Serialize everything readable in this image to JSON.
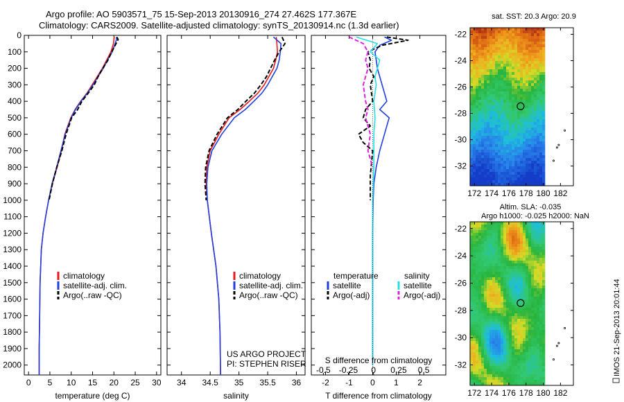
{
  "header": {
    "title_line1": "Argo profile: AO 5903571_75 15-Sep-2013 20130916_274 27.462S 177.367E",
    "title_line2": "Climatology: CARS2009. Satellite-adjusted climatology: synTS_20130914.nc (1.3d earlier)"
  },
  "credits": {
    "project": "US ARGO PROJECT",
    "pi": "PI: STEPHEN RISER",
    "side_text": "IMOS 21-Sep-2013 20:01:44"
  },
  "colors": {
    "climatology": "#e41a1c",
    "satellite": "#1f3ee0",
    "argo": "#000000",
    "salinity_satellite": "#22e0e8",
    "salinity_argo": "#e020e0"
  },
  "chart_data": [
    {
      "type": "line",
      "id": "temperature",
      "xlabel": "temperature (deg C)",
      "ylabel": "",
      "xlim": [
        -1,
        31
      ],
      "ylim": [
        2060,
        0
      ],
      "xticks": [
        0,
        5,
        10,
        15,
        20,
        25,
        30
      ],
      "yticks": [
        0,
        100,
        200,
        300,
        400,
        500,
        600,
        700,
        800,
        900,
        1000,
        1100,
        1200,
        1300,
        1400,
        1500,
        1600,
        1700,
        1800,
        1900,
        2000
      ],
      "legend": [
        "climatology",
        "satellite-adj. clim.",
        "Argo(..raw -QC)"
      ],
      "series": [
        {
          "name": "climatology",
          "style": "solid",
          "color": "#e41a1c",
          "x": [
            20.1,
            20.0,
            19.9,
            19.3,
            18.3,
            17.3,
            16.1,
            14.9,
            13.7,
            12.2,
            10.9,
            9.9,
            8.5,
            7.7,
            6.7,
            5.6,
            4.7,
            4.0,
            3.4,
            3.0,
            2.7,
            2.6,
            2.5,
            2.5
          ],
          "y": [
            10,
            25,
            50,
            100,
            150,
            200,
            250,
            300,
            350,
            400,
            450,
            500,
            600,
            700,
            800,
            900,
            1000,
            1100,
            1200,
            1300,
            1500,
            1700,
            1900,
            2060
          ]
        },
        {
          "name": "satellite-adj. clim.",
          "style": "solid",
          "color": "#1f3ee0",
          "x": [
            20.6,
            20.6,
            20.3,
            19.6,
            18.5,
            17.5,
            16.3,
            15.1,
            13.8,
            12.3,
            11.0,
            10.0,
            8.6,
            7.6,
            6.6,
            5.5,
            4.7,
            4.0,
            3.4,
            3.0,
            2.7,
            2.6,
            2.5,
            2.5
          ],
          "y": [
            10,
            25,
            50,
            100,
            150,
            200,
            250,
            300,
            350,
            400,
            450,
            500,
            600,
            700,
            800,
            900,
            1000,
            1100,
            1200,
            1300,
            1500,
            1700,
            1900,
            2060
          ]
        },
        {
          "name": "Argo(..raw -QC)",
          "style": "dashed",
          "color": "#000000",
          "x": [
            20.7,
            21.0,
            20.5,
            19.5,
            18.6,
            17.4,
            16.3,
            15.4,
            14.0,
            12.5,
            11.5,
            10.1,
            8.8,
            7.8,
            6.6,
            5.6,
            4.8
          ],
          "y": [
            10,
            25,
            50,
            100,
            150,
            200,
            250,
            300,
            350,
            400,
            450,
            500,
            600,
            700,
            800,
            900,
            1000
          ]
        }
      ]
    },
    {
      "type": "line",
      "id": "salinity",
      "xlabel": "salinity",
      "ylabel": "",
      "xlim": [
        33.75,
        36.15
      ],
      "ylim": [
        2060,
        0
      ],
      "xticks": [
        34,
        34.5,
        35,
        35.5,
        36
      ],
      "legend": [
        "climatology",
        "satellite-adj. clim.",
        "Argo(..raw -QC)"
      ],
      "series": [
        {
          "name": "climatology",
          "style": "solid",
          "color": "#e41a1c",
          "x": [
            35.65,
            35.66,
            35.67,
            35.64,
            35.6,
            35.52,
            35.44,
            35.33,
            35.18,
            35.02,
            34.83,
            34.65,
            34.5,
            34.44,
            34.43,
            34.45,
            34.52,
            34.6,
            34.65,
            34.67,
            34.68
          ],
          "y": [
            10,
            50,
            100,
            150,
            200,
            250,
            300,
            350,
            400,
            450,
            500,
            600,
            700,
            800,
            900,
            1000,
            1200,
            1400,
            1600,
            1800,
            2060
          ]
        },
        {
          "name": "satellite-adj. clim.",
          "style": "solid",
          "color": "#1f3ee0",
          "x": [
            35.6,
            35.73,
            35.72,
            35.7,
            35.66,
            35.58,
            35.5,
            35.4,
            35.26,
            35.11,
            34.92,
            34.7,
            34.53,
            34.46,
            34.44,
            34.45,
            34.52,
            34.6,
            34.65,
            34.67,
            34.68
          ],
          "y": [
            10,
            50,
            100,
            150,
            200,
            250,
            300,
            350,
            400,
            450,
            500,
            600,
            700,
            800,
            900,
            1000,
            1200,
            1400,
            1600,
            1800,
            2060
          ]
        },
        {
          "name": "Argo(..raw -QC)",
          "style": "dashed",
          "color": "#000000",
          "x": [
            35.75,
            35.8,
            35.7,
            35.62,
            35.55,
            35.48,
            35.38,
            35.27,
            35.12,
            34.98,
            34.8,
            34.62,
            34.48,
            34.42,
            34.41,
            34.43
          ],
          "y": [
            10,
            50,
            100,
            150,
            200,
            250,
            300,
            350,
            400,
            450,
            500,
            600,
            700,
            800,
            900,
            1000
          ]
        }
      ]
    },
    {
      "type": "line",
      "id": "difference",
      "xlabel": "T difference from climatology",
      "xlabel_top": "S difference from climatology",
      "xlim": [
        -2.6,
        3.1
      ],
      "ylim": [
        2060,
        0
      ],
      "xticks": [
        -2,
        -1,
        0,
        1,
        2
      ],
      "xticklabels": [
        "-2",
        "-1",
        "0",
        "1",
        "2"
      ],
      "xticks_top": [
        -0.5,
        -0.25,
        0,
        0.25,
        0.5
      ],
      "xticklabels_top": [
        "-0.5",
        "-0.25",
        "0",
        "0.25",
        "0.5"
      ],
      "legend_title_left": "temperature",
      "legend_title_right": "salinity",
      "legend_left": [
        "satellite",
        "Argo(-adj)"
      ],
      "legend_right": [
        "satellite",
        "Argo(-adj)"
      ],
      "series": [
        {
          "name": "temperature satellite",
          "style": "solid",
          "color": "#1f3ee0",
          "x": [
            0.5,
            0.8,
            0.3,
            0.1,
            0.15,
            0.2,
            0.3,
            0.4,
            0.6,
            0.3,
            0.7,
            0.5,
            0.3,
            0.15,
            0.05,
            0.02,
            0.0,
            0.0,
            0.0,
            0.0
          ],
          "y": [
            10,
            30,
            60,
            100,
            150,
            200,
            250,
            300,
            400,
            450,
            500,
            600,
            700,
            800,
            900,
            1000,
            1200,
            1500,
            1800,
            2000
          ]
        },
        {
          "name": "temperature Argo(-adj)",
          "style": "dashed",
          "color": "#000000",
          "x": [
            0.6,
            1.5,
            0.4,
            -0.2,
            -0.1,
            -0.15,
            0.05,
            -0.1,
            0.0,
            -0.3,
            -0.4,
            -0.1,
            -0.6,
            -0.4,
            0.0,
            -0.1,
            -0.1
          ],
          "y": [
            10,
            30,
            60,
            100,
            150,
            200,
            250,
            300,
            400,
            450,
            500,
            550,
            600,
            650,
            700,
            850,
            1000
          ]
        },
        {
          "name": "salinity satellite",
          "style": "solid",
          "color": "#22e0e8",
          "x": [
            -0.7,
            0.2,
            -0.1,
            0.3,
            0.2,
            0.1,
            0.15,
            0.05,
            0.1,
            0.05,
            0.05,
            0.05,
            0.0,
            0.0,
            0.0
          ],
          "y": [
            10,
            50,
            100,
            150,
            200,
            250,
            300,
            400,
            500,
            600,
            700,
            800,
            1000,
            1500,
            2000
          ]
        },
        {
          "name": "salinity Argo(-adj)",
          "style": "dashed",
          "color": "#e020e0",
          "x": [
            -1.0,
            -0.4,
            -0.2,
            -0.3,
            -0.2,
            -0.4,
            -0.3,
            -0.2,
            -0.3,
            -0.1,
            -0.2,
            0.0
          ],
          "y": [
            10,
            50,
            100,
            150,
            200,
            300,
            400,
            450,
            500,
            600,
            700,
            800
          ]
        }
      ]
    },
    {
      "type": "heatmap",
      "id": "sst_map",
      "title": "sat. SST: 20.3  Argo: 20.9",
      "xlim": [
        171.5,
        183.5
      ],
      "ylim": [
        -33.5,
        -21.5
      ],
      "xticks": [
        172,
        174,
        176,
        178,
        180,
        182
      ],
      "yticks": [
        -22,
        -24,
        -26,
        -28,
        -30,
        -32
      ],
      "marker": {
        "lon": 177.367,
        "lat": -27.462
      }
    },
    {
      "type": "heatmap",
      "id": "sla_map",
      "title": "Altim. SLA: -0.035",
      "subtitle": "Argo h1000: -0.025 h2000: NaN",
      "xlim": [
        171.5,
        183.5
      ],
      "ylim": [
        -33.5,
        -21.5
      ],
      "xticks": [
        172,
        174,
        176,
        178,
        180,
        182
      ],
      "yticks": [
        -22,
        -24,
        -26,
        -28,
        -30,
        -32
      ],
      "marker": {
        "lon": 177.367,
        "lat": -27.462
      }
    }
  ]
}
